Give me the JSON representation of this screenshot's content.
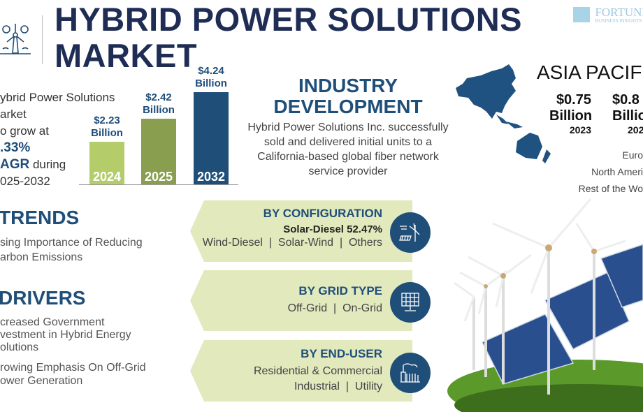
{
  "header": {
    "title_line1": "HYBRID POWER SOLUTIONS",
    "title_line2": "MARKET",
    "icon": "wind-turbine-icon"
  },
  "logo": {
    "text": "FORTUNE",
    "subtext": "BUSINESS INSIGHTS"
  },
  "summary": {
    "line1": "ybrid Power Solutions",
    "line2": "arket",
    "line3": "o grow at",
    "cagr": ".33%",
    "cagr_label": "AGR",
    "line5_rest": " during",
    "period": "025-2032"
  },
  "chart_data": {
    "type": "bar",
    "categories": [
      "2024",
      "2025",
      "2032"
    ],
    "values": [
      2.23,
      2.42,
      4.24
    ],
    "labels": [
      "$2.23",
      "$2.42",
      "$4.24"
    ],
    "unit": "Billion",
    "colors": [
      "#b5cc6a",
      "#8a9e50",
      "#1f4e79"
    ]
  },
  "industry": {
    "title_line1": "INDUSTRY",
    "title_line2": "DEVELOPMENT",
    "text": "Hybrid Power Solutions Inc. successfully sold and delivered initial units to a California-based global fiber network service provider"
  },
  "region": {
    "title": "ASIA PACIFIC",
    "values": [
      {
        "value": "$0.75",
        "unit": "Billion",
        "year": "2023"
      },
      {
        "value": "$0.8",
        "unit": "Billio",
        "year": "202"
      }
    ],
    "others": [
      "Euro",
      "North Ameri",
      "Rest of the Wo"
    ]
  },
  "trends": {
    "title": "TRENDS",
    "items": [
      "sing Importance of Reducing",
      "arbon Emissions"
    ]
  },
  "drivers": {
    "title": "DRIVERS",
    "items": [
      [
        "creased Government",
        "vestment in Hybrid Energy",
        "olutions"
      ],
      [
        "rowing Emphasis On Off-Grid",
        "ower Generation"
      ]
    ]
  },
  "segments": [
    {
      "title": "BY CONFIGURATION",
      "highlight": "Solar-Diesel 52.47%",
      "lines": [
        "Wind-Diesel  |  Solar-Wind  |  Others"
      ],
      "icon": "wind-solar-icon"
    },
    {
      "title": "BY GRID TYPE",
      "lines": [
        "Off-Grid  |  On-Grid"
      ],
      "icon": "solar-panel-icon"
    },
    {
      "title": "BY END-USER",
      "lines": [
        "Residential & Commercial",
        "Industrial  |  Utility"
      ],
      "icon": "factory-icon"
    }
  ],
  "colors": {
    "navy": "#1f2d55",
    "blue": "#1f4e79",
    "panel": "#e1e9bd"
  }
}
